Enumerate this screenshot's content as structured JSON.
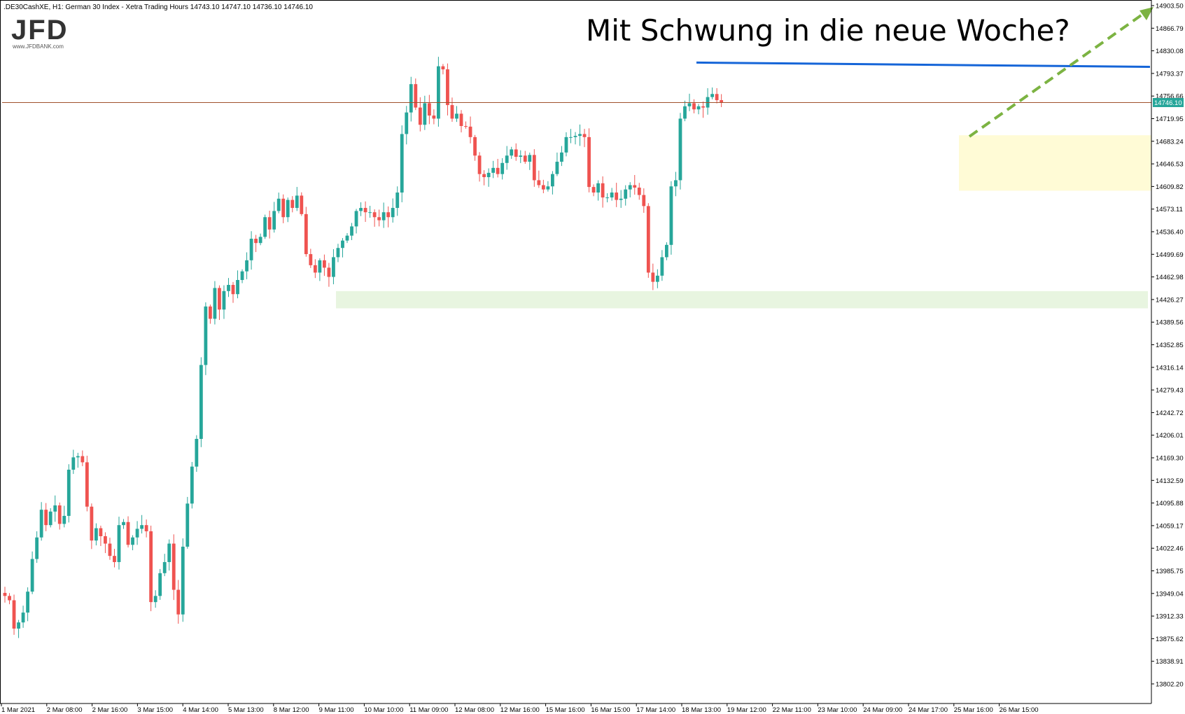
{
  "header": {
    "symbol": ".DE30CashXE, H1:  German 30 Index  - Xetra Trading Hours  14743.10 14747.10 14736.10 14746.10"
  },
  "logo": {
    "text": "JFD",
    "subtext": "www.JFDBANK.com"
  },
  "annotation": {
    "text": "Mit Schwung in die neue Woche?"
  },
  "colors": {
    "bull": "#26a69a",
    "bear": "#ef5350",
    "blue_line": "#1565d8",
    "arrow": "#7cb342",
    "price_line": "#a0522d",
    "support_zone": "#e8f5e0",
    "yellow_zone": "#fffbd6",
    "price_label_bg": "#26a69a"
  },
  "chart_data": {
    "type": "candlestick",
    "title": "",
    "ylim": [
      13780,
      14910
    ],
    "y_ticks": [
      "14903.50",
      "14866.79",
      "14830.08",
      "14793.37",
      "14756.66",
      "14719.95",
      "14683.24",
      "14646.53",
      "14609.82",
      "14573.11",
      "14536.40",
      "14499.69",
      "14462.98",
      "14426.27",
      "14389.56",
      "14352.85",
      "14316.14",
      "14279.43",
      "14242.72",
      "14206.01",
      "14169.30",
      "14132.59",
      "14095.88",
      "14059.17",
      "14022.46",
      "13985.75",
      "13949.04",
      "13912.33",
      "13875.62",
      "13838.91",
      "13802.20"
    ],
    "x_labels": [
      "1 Mar 2021",
      "2 Mar 08:00",
      "2 Mar 16:00",
      "3 Mar 15:00",
      "4 Mar 14:00",
      "5 Mar 13:00",
      "8 Mar 12:00",
      "9 Mar 11:00",
      "10 Mar 10:00",
      "11 Mar 09:00",
      "12 Mar 08:00",
      "12 Mar 16:00",
      "15 Mar 16:00",
      "16 Mar 15:00",
      "17 Mar 14:00",
      "18 Mar 13:00",
      "19 Mar 12:00",
      "22 Mar 11:00",
      "23 Mar 10:00",
      "24 Mar 09:00",
      "24 Mar 17:00",
      "25 Mar 16:00",
      "26 Mar 15:00"
    ],
    "current_price": 14746.1,
    "current_price_label": "14746.10",
    "resistance_level": 14807,
    "support_zone": [
      14412,
      14440
    ],
    "target_zone": [
      14603,
      14693
    ],
    "closes": [
      13945,
      13938,
      13892,
      13902,
      13918,
      13952,
      14005,
      14040,
      14085,
      14060,
      14082,
      14092,
      14062,
      14075,
      14150,
      14170,
      14172,
      14162,
      14090,
      14035,
      14055,
      14042,
      14030,
      14010,
      14000,
      14060,
      14065,
      14028,
      14040,
      14054,
      14060,
      14050,
      13935,
      13945,
      13982,
      14000,
      14030,
      13955,
      13915,
      14025,
      14095,
      14155,
      14200,
      14320,
      14415,
      14395,
      14445,
      14410,
      14440,
      14450,
      14435,
      14458,
      14472,
      14490,
      14525,
      14518,
      14528,
      14560,
      14540,
      14570,
      14590,
      14560,
      14588,
      14575,
      14595,
      14565,
      14500,
      14482,
      14470,
      14490,
      14478,
      14463,
      14495,
      14510,
      14522,
      14530,
      14545,
      14570,
      14575,
      14568,
      14568,
      14560,
      14555,
      14568,
      14560,
      14575,
      14600,
      14695,
      14730,
      14776,
      14738,
      14710,
      14745,
      14725,
      14720,
      14805,
      14800,
      14742,
      14720,
      14728,
      14708,
      14707,
      14690,
      14660,
      14630,
      14625,
      14632,
      14640,
      14630,
      14648,
      14660,
      14670,
      14658,
      14660,
      14650,
      14661,
      14620,
      14612,
      14605,
      14610,
      14630,
      14650,
      14665,
      14690,
      14690,
      14692,
      14695,
      14690,
      14609,
      14600,
      14615,
      14592,
      14592,
      14600,
      14588,
      14590,
      14605,
      14612,
      14608,
      14596,
      14578,
      14470,
      14455,
      14465,
      14495,
      14515,
      14610,
      14620,
      14720,
      14740,
      14745,
      14735,
      14740,
      14738,
      14755,
      14760,
      14750,
      14746
    ],
    "ohlc_note": "Hourly OHLC series derived from the closes; first open 13950"
  }
}
